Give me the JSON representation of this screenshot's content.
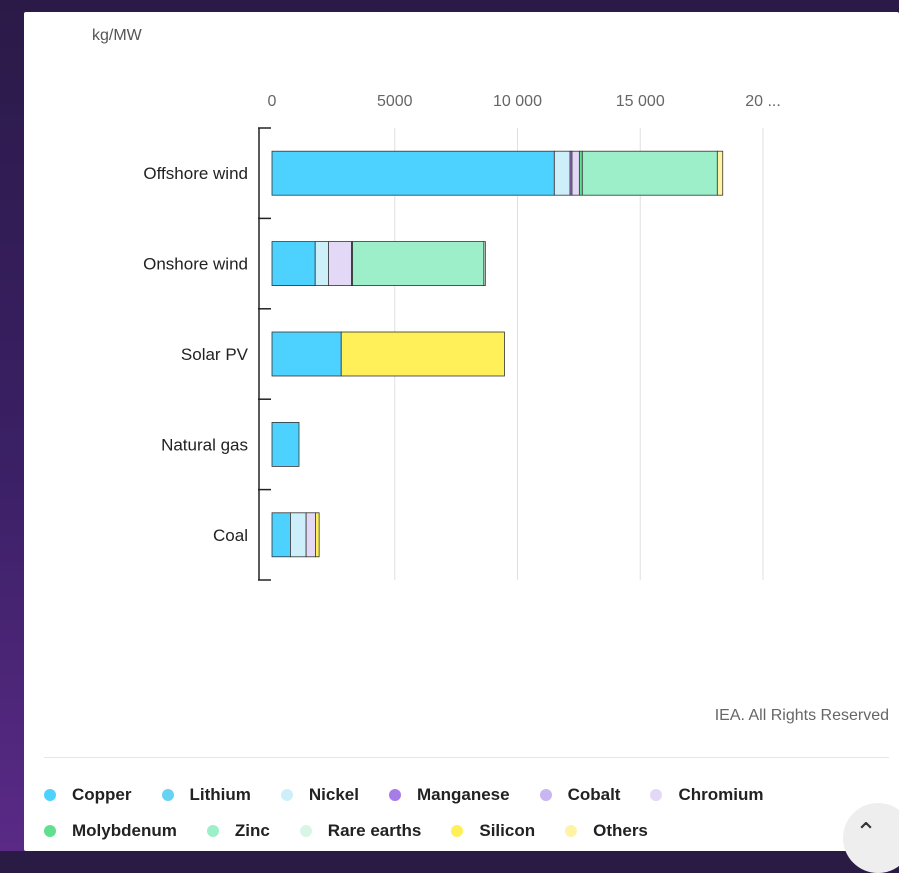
{
  "unit_label": "kg/MW",
  "credit": "IEA. All Rights Reserved",
  "colors": {
    "Copper": "#4dd2ff",
    "Lithium": "#67d3f2",
    "Nickel": "#cdeffa",
    "Manganese": "#a77be8",
    "Cobalt": "#c9b5f0",
    "Chromium": "#e3d9f7",
    "Molybdenum": "#5fe08f",
    "Zinc": "#9cefc8",
    "Rare earths": "#d8f6e6",
    "Silicon": "#fff05a",
    "Others": "#fff3a6"
  },
  "legend_rows": [
    [
      "Copper",
      "Lithium",
      "Nickel",
      "Manganese",
      "Cobalt",
      "Chromium"
    ],
    [
      "Molybdenum",
      "Zinc",
      "Rare earths",
      "Silicon",
      "Others"
    ]
  ],
  "scroll_top_icon": "chevron-up-icon",
  "chart_data": {
    "type": "bar",
    "orientation": "horizontal",
    "stacked": true,
    "categories": [
      "Offshore wind",
      "Onshore wind",
      "Solar PV",
      "Natural gas",
      "Coal"
    ],
    "x_ticks": [
      "0",
      "5000",
      "10 000",
      "15 000",
      "20 ..."
    ],
    "x_tick_values": [
      0,
      5000,
      10000,
      15000,
      20000
    ],
    "xlim": [
      0,
      20000
    ],
    "xlabel": "",
    "ylabel": "kg/MW",
    "grid": true,
    "legend_position": "bottom",
    "series": [
      {
        "name": "Copper",
        "values": [
          11500,
          1760,
          2820,
          1100,
          750
        ]
      },
      {
        "name": "Lithium",
        "values": [
          0,
          0,
          0,
          0,
          0
        ]
      },
      {
        "name": "Nickel",
        "values": [
          640,
          540,
          0,
          0,
          640
        ]
      },
      {
        "name": "Manganese",
        "values": [
          80,
          0,
          0,
          0,
          0
        ]
      },
      {
        "name": "Cobalt",
        "values": [
          0,
          0,
          0,
          0,
          0
        ]
      },
      {
        "name": "Chromium",
        "values": [
          300,
          940,
          0,
          0,
          380
        ]
      },
      {
        "name": "Molybdenum",
        "values": [
          120,
          40,
          0,
          0,
          0
        ]
      },
      {
        "name": "Zinc",
        "values": [
          5500,
          5350,
          0,
          0,
          0
        ]
      },
      {
        "name": "Rare earths",
        "values": [
          0,
          60,
          0,
          0,
          0
        ]
      },
      {
        "name": "Silicon",
        "values": [
          0,
          0,
          6650,
          0,
          150
        ]
      },
      {
        "name": "Others",
        "values": [
          220,
          0,
          0,
          0,
          0
        ]
      }
    ]
  }
}
